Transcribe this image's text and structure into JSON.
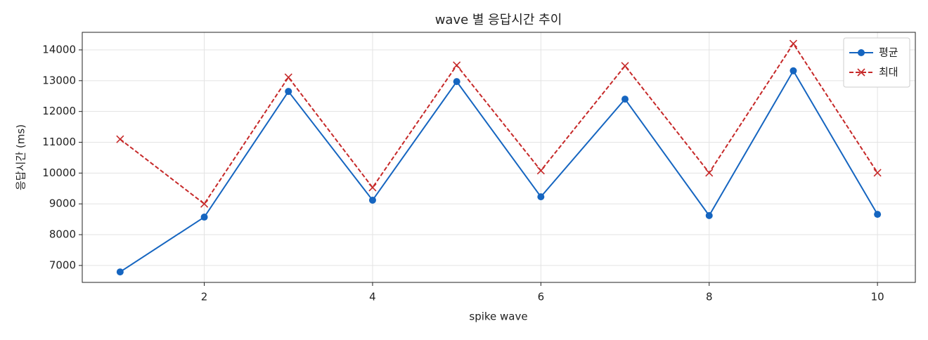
{
  "chart_data": {
    "type": "line",
    "title": "wave 별 응답시간 추이",
    "x_label": "spike wave",
    "y_label": "응답시간 (ms)",
    "x": [
      1,
      2,
      3,
      4,
      5,
      6,
      7,
      8,
      9,
      10
    ],
    "series": [
      {
        "name": "평균",
        "color": "#1565c0",
        "marker": "o",
        "linestyle": "solid",
        "values": [
          6790,
          8570,
          12650,
          9120,
          12970,
          9230,
          12400,
          8620,
          13320,
          8660
        ]
      },
      {
        "name": "최대",
        "color": "#c62828",
        "marker": "x",
        "linestyle": "dashed",
        "values": [
          11100,
          9000,
          13110,
          9530,
          13500,
          10080,
          13480,
          10010,
          14200,
          10010
        ]
      }
    ],
    "xlim": [
      0.55,
      10.45
    ],
    "xticks": [
      2,
      4,
      6,
      8,
      10
    ],
    "ylim": [
      6450,
      14570
    ],
    "yticks": [
      7000,
      8000,
      9000,
      10000,
      11000,
      12000,
      13000,
      14000
    ],
    "grid": true,
    "legend": "upper right"
  }
}
